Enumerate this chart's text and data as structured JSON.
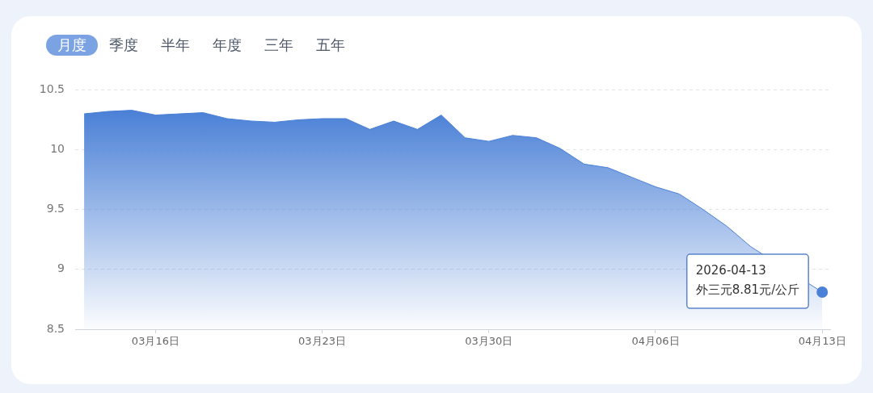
{
  "chart_data": {
    "type": "area",
    "annotations": [
      "月度",
      "季度",
      "半年",
      "年度",
      "三年",
      "五年",
      {
        "text": "2026-04-13\n外三元8.81元/公斤",
        "x": "2026-04-13",
        "y": 8.81
      }
    ],
    "x": [
      "2026-03-13",
      "2026-03-14",
      "2026-03-15",
      "2026-03-16",
      "2026-03-17",
      "2026-03-18",
      "2026-03-19",
      "2026-03-20",
      "2026-03-21",
      "2026-03-22",
      "2026-03-23",
      "2026-03-24",
      "2026-03-25",
      "2026-03-26",
      "2026-03-27",
      "2026-03-28",
      "2026-03-29",
      "2026-03-30",
      "2026-03-31",
      "2026-04-01",
      "2026-04-02",
      "2026-04-03",
      "2026-04-04",
      "2026-04-05",
      "2026-04-06",
      "2026-04-07",
      "2026-04-08",
      "2026-04-09",
      "2026-04-10",
      "2026-04-11",
      "2026-04-12",
      "2026-04-13"
    ],
    "series": [
      {
        "color": "#4a80d6",
        "values": [
          10.3,
          10.32,
          10.33,
          10.29,
          10.3,
          10.31,
          10.26,
          10.24,
          10.23,
          10.25,
          10.26,
          10.26,
          10.17,
          10.24,
          10.17,
          10.29,
          10.1,
          10.07,
          10.12,
          10.1,
          10.01,
          9.88,
          9.85,
          9.77,
          9.69,
          9.63,
          9.5,
          9.36,
          9.19,
          null,
          null,
          8.81
        ]
      }
    ],
    "xlim": [
      "2026-03-12T15:00",
      "2026-04-13T08:00"
    ],
    "xticks": [
      {
        "value": "2026-03-16",
        "label": "03月16日"
      },
      {
        "value": "2026-03-23",
        "label": "03月23日"
      },
      {
        "value": "2026-03-30",
        "label": "03月30日"
      },
      {
        "value": "2026-04-06",
        "label": "04月06日"
      },
      {
        "value": "2026-04-13",
        "label": "04月13日"
      }
    ],
    "ylim": [
      8.5,
      10.5
    ],
    "yticks": [
      8.5,
      9,
      9.5,
      10,
      10.5
    ],
    "grid": "y",
    "marker": "none"
  }
}
